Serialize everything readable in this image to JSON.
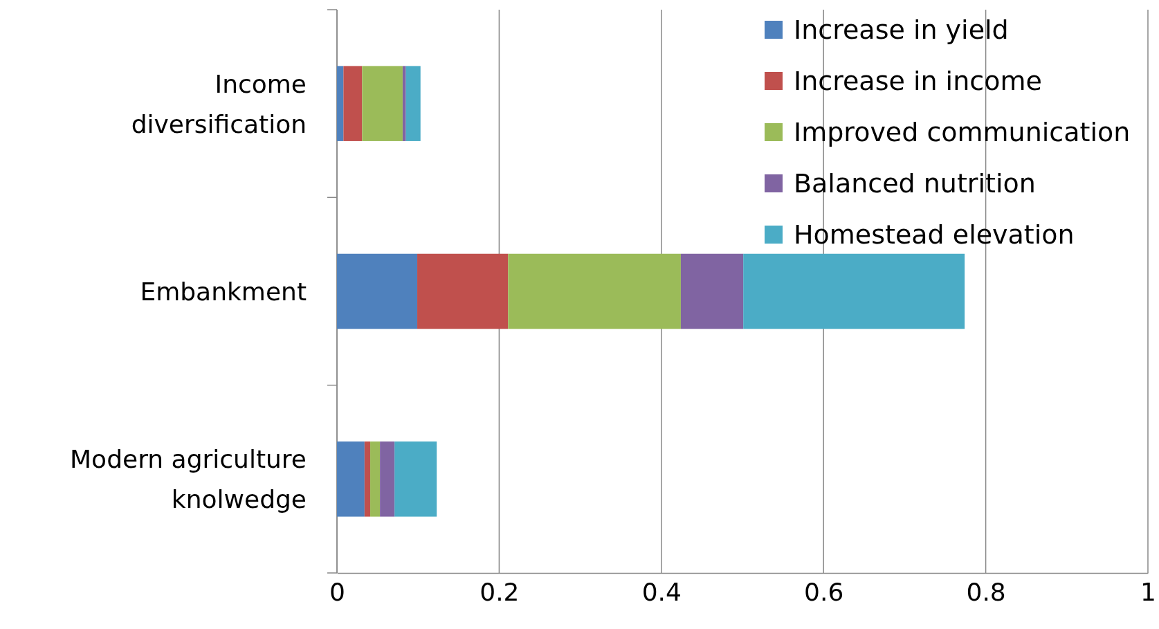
{
  "chart_data": {
    "type": "bar",
    "orientation": "horizontal",
    "stacked": true,
    "categories": [
      "Income diversification",
      "Embankment",
      "Modern agriculture knolwedge"
    ],
    "series": [
      {
        "name": "Increase in yield",
        "color": "#4f81bd",
        "values": [
          0.008,
          0.099,
          0.034
        ]
      },
      {
        "name": "Increase in income",
        "color": "#c0504d",
        "values": [
          0.023,
          0.112,
          0.007
        ]
      },
      {
        "name": "Improved communication",
        "color": "#9bbb59",
        "values": [
          0.05,
          0.213,
          0.012
        ]
      },
      {
        "name": "Balanced nutrition",
        "color": "#8064a2",
        "values": [
          0.004,
          0.077,
          0.018
        ]
      },
      {
        "name": "Homestead elevation",
        "color": "#4bacc6",
        "values": [
          0.018,
          0.273,
          0.052
        ]
      }
    ],
    "xlim": [
      0,
      1
    ],
    "xticks": [
      0,
      0.2,
      0.4,
      0.6,
      0.8,
      1
    ],
    "grid": "x",
    "legend": "top right"
  }
}
